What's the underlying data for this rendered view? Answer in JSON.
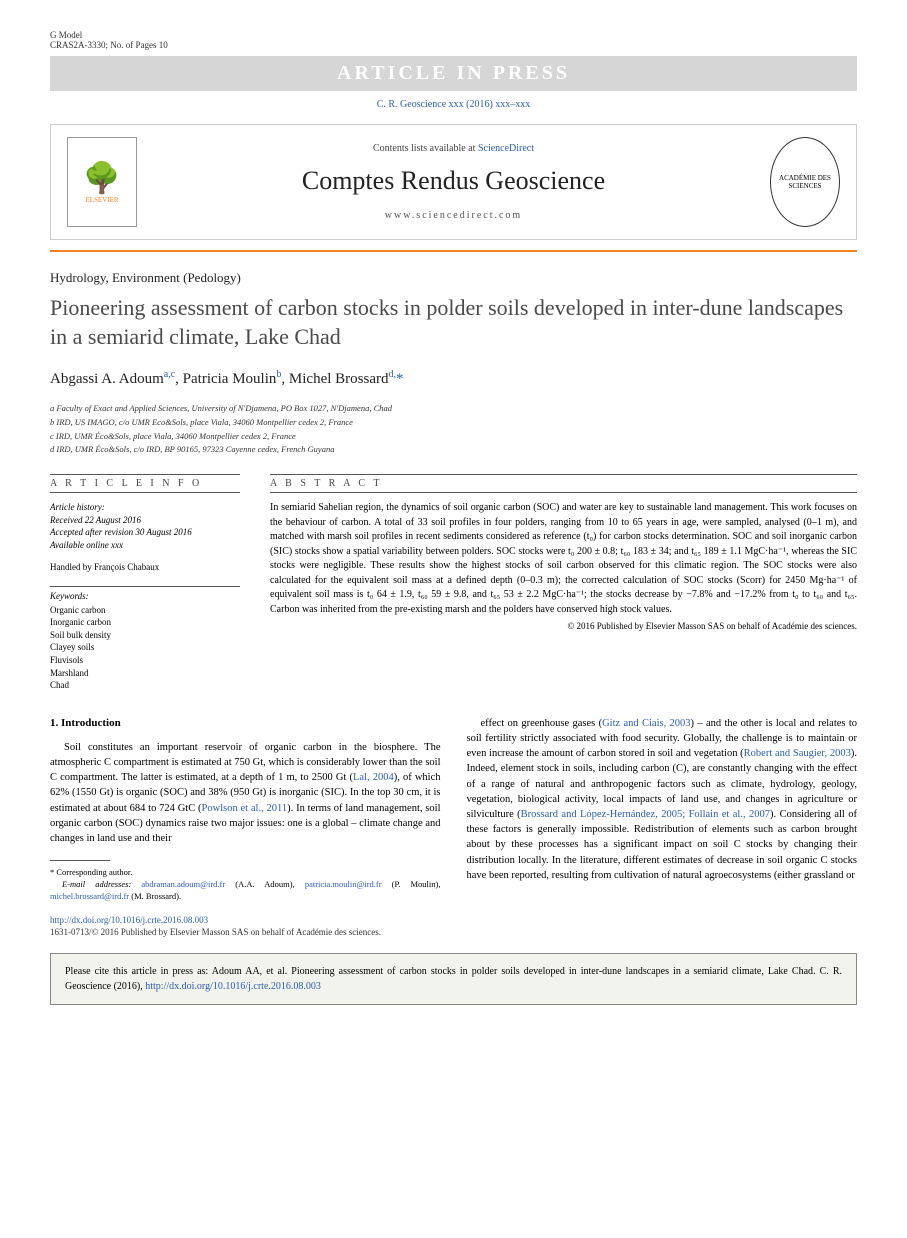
{
  "header": {
    "gmodel": "G Model",
    "ref": "CRAS2A-3330; No. of Pages 10",
    "press_banner": "ARTICLE IN PRESS",
    "journal_line": "C. R. Geoscience xxx (2016) xxx–xxx"
  },
  "masthead": {
    "elsevier_label": "ELSEVIER",
    "contents": "Contents lists available at ",
    "sciencedirect": "ScienceDirect",
    "journal_title": "Comptes Rendus Geoscience",
    "url": "www.sciencedirect.com"
  },
  "article": {
    "category": "Hydrology, Environment (Pedology)",
    "title": "Pioneering assessment of carbon stocks in polder soils developed in inter-dune landscapes in a semiarid climate, Lake Chad",
    "authors_html": "Abgassi A. Adoum",
    "author1": "Abgassi A. Adoum",
    "author1_sup": "a,c",
    "author2": ", Patricia Moulin",
    "author2_sup": "b",
    "author3": ", Michel Brossard",
    "author3_sup": "d,",
    "corr_mark": "*"
  },
  "affiliations": {
    "a": "a Faculty of Exact and Applied Sciences, University of N'Djamena, PO Box 1027, N'Djamena, Chad",
    "b": "b IRD, US IMAGO, c/o UMR Eco&Sols, place Viala, 34060 Montpellier cedex 2, France",
    "c": "c IRD, UMR Éco&Sols, place Viala, 34060 Montpellier cedex 2, France",
    "d": "d IRD, UMR Éco&Sols, c/o IRD, BP 90165, 97323 Cayenne cedex, French Guyana"
  },
  "info": {
    "label": "A R T I C L E   I N F O",
    "history_label": "Article history:",
    "received": "Received 22 August 2016",
    "accepted": "Accepted after revision 30 August 2016",
    "online": "Available online xxx",
    "handled": "Handled by François Chabaux",
    "keywords_label": "Keywords:",
    "keywords": [
      "Organic carbon",
      "Inorganic carbon",
      "Soil bulk density",
      "Clayey soils",
      "Fluvisols",
      "Marshland",
      "Chad"
    ]
  },
  "abstract": {
    "label": "A B S T R A C T",
    "text": "In semiarid Sahelian region, the dynamics of soil organic carbon (SOC) and water are key to sustainable land management. This work focuses on the behaviour of carbon. A total of 33 soil profiles in four polders, ranging from 10 to 65 years in age, were sampled, analysed (0–1 m), and matched with marsh soil profiles in recent sediments considered as reference (t₀) for carbon stocks determination. SOC and soil inorganic carbon (SIC) stocks show a spatial variability between polders. SOC stocks were t₀ 200 ± 0.8; t₆₀ 183 ± 34; and t₆₅ 189 ± 1.1 MgC·ha⁻¹, whereas the SIC stocks were negligible. These results show the highest stocks of soil carbon observed for this climatic region. The SOC stocks were also calculated for the equivalent soil mass at a defined depth (0–0.3 m); the corrected calculation of SOC stocks (Scorr) for 2450 Mg·ha⁻¹ of equivalent soil mass is t₀ 64 ± 1.9, t₆₀ 59 ± 9.8, and t₆₅ 53 ± 2.2 MgC·ha⁻¹; the stocks decrease by −7.8% and −17.2% from t₀ to t₆₀ and t₆₅. Carbon was inherited from the pre-existing marsh and the polders have conserved high stock values.",
    "copyright": "© 2016 Published by Elsevier Masson SAS on behalf of Académie des sciences."
  },
  "body": {
    "section_heading": "1. Introduction",
    "col1_p1a": "Soil constitutes an important reservoir of organic carbon in the biosphere. The atmospheric C compartment is estimated at 750 Gt, which is considerably lower than the soil C compartment. The latter is estimated, at a depth of 1 m, to 2500 Gt (",
    "ref_lal": "Lal, 2004",
    "col1_p1b": "), of which 62% (1550 Gt) is organic (SOC) and 38% (950 Gt) is inorganic (SIC). In the top 30 cm, it is estimated at about 684 to 724 GtC (",
    "ref_powlson": "Powlson et al., 2011",
    "col1_p1c": "). In terms of land management, soil organic carbon (SOC) dynamics raise two major issues: one is a global – climate change and changes in land use and their",
    "col2_p1a": "effect on greenhouse gases (",
    "ref_gitz": "Gitz and Ciais, 2003",
    "col2_p1b": ") – and the other is local and relates to soil fertility strictly associated with food security. Globally, the challenge is to maintain or even increase the amount of carbon stored in soil and vegetation (",
    "ref_robert": "Robert and Saugier, 2003",
    "col2_p1c": "). Indeed, element stock in soils, including carbon (C), are constantly changing with the effect of a range of natural and anthropogenic factors such as climate, hydrology, geology, vegetation, biological activity, local impacts of land use, and changes in agriculture or silviculture (",
    "ref_brossard": "Brossard and López-Hernández, 2005; Follain et al., 2007",
    "col2_p1d": "). Considering all of these factors is generally impossible. Redistribution of elements such as carbon brought about by these processes has a significant impact on soil C stocks by changing their distribution locally. In the literature, different estimates of decrease in soil organic C stocks have been reported, resulting from cultivation of natural agroecosystems (either grassland or"
  },
  "footnotes": {
    "corr_label": "* Corresponding author.",
    "email_label": "E-mail addresses: ",
    "email1": "abdraman.adoum@ird.fr",
    "name1": " (A.A. Adoum), ",
    "email2": "patricia.moulin@ird.fr",
    "name2": " (P. Moulin), ",
    "email3": "michel.brossard@ird.fr",
    "name3": " (M. Brossard)."
  },
  "doi": {
    "url": "http://dx.doi.org/10.1016/j.crte.2016.08.003",
    "copy": "1631-0713/© 2016 Published by Elsevier Masson SAS on behalf of Académie des sciences."
  },
  "citebox": {
    "text_a": "Please cite this article in press as: Adoum AA, et al. Pioneering assessment of carbon stocks in polder soils developed in inter-dune landscapes in a semiarid climate, Lake Chad. C. R. Geoscience (2016), ",
    "link": "http://dx.doi.org/10.1016/j.crte.2016.08.003"
  },
  "colors": {
    "link": "#2a5db0",
    "orange": "#f58220",
    "banner_bg": "#d6d6d6"
  }
}
